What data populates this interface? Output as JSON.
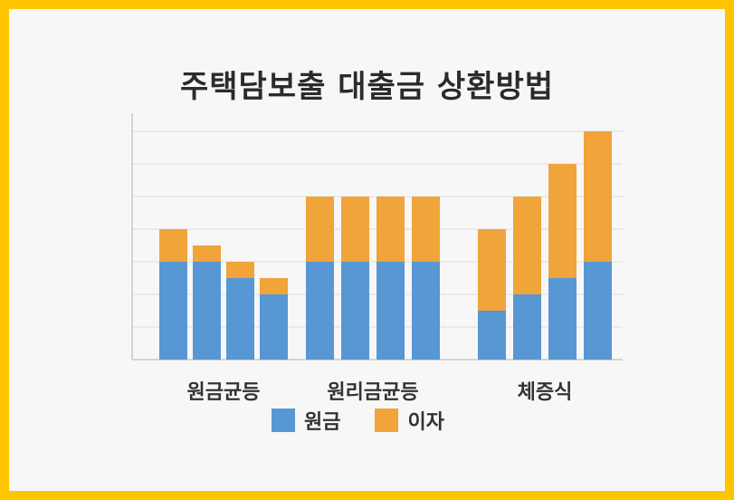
{
  "title": "주택담보출 대출금 상환방법",
  "colors": {
    "principal": "#5797d4",
    "interest": "#f0a43a"
  },
  "legend": [
    {
      "label": "원금",
      "color": "#5797d4"
    },
    {
      "label": "이자",
      "color": "#f0a43a"
    }
  ],
  "chart_data": {
    "type": "bar",
    "stacked": true,
    "grid": true,
    "ylim": [
      0,
      7
    ],
    "groups": [
      {
        "label": "원금균등",
        "principal": [
          3,
          3,
          2.5,
          2
        ],
        "interest": [
          1,
          0.5,
          0.5,
          0.5
        ]
      },
      {
        "label": "원리금균등",
        "principal": [
          3,
          3,
          3,
          3
        ],
        "interest": [
          2,
          2,
          2,
          2
        ]
      },
      {
        "label": "체증식",
        "principal": [
          1.5,
          2,
          2.5,
          3
        ],
        "interest": [
          2.5,
          3,
          3.5,
          4
        ]
      }
    ],
    "series": [
      {
        "name": "원금"
      },
      {
        "name": "이자"
      }
    ]
  }
}
